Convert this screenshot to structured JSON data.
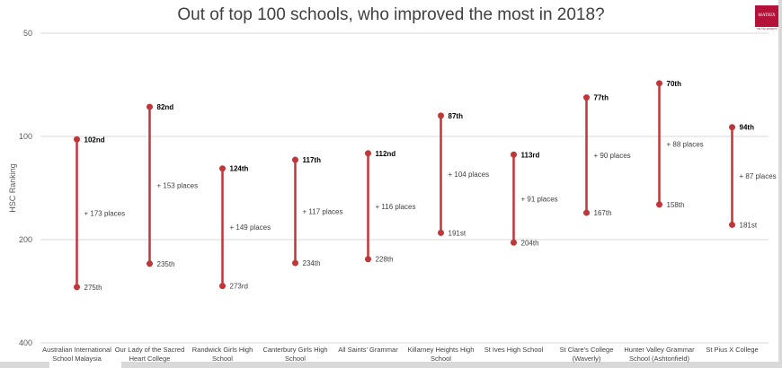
{
  "chart_data": {
    "type": "dumbbell",
    "title": "Out of top 100 schools, who improved the most in 2018?",
    "ylabel": "HSC Ranking",
    "xlabel": "",
    "y_scale": "log",
    "y_reversed": true,
    "ylim": [
      50,
      400
    ],
    "y_ticks": [
      50,
      100,
      200,
      400
    ],
    "grid": true,
    "line_color": "#c0373a",
    "categories": [
      "Australian International School Malaysia",
      "Our Lady of the Sacred Heart College",
      "Randwick Girls High School",
      "Canterbury Girls High School",
      "All Saints' Grammar",
      "Killarney Heights High School",
      "St Ives High School",
      "St Clare's College (Waverly)",
      "Hunter Valley Grammar School (Ashtonfield)",
      "St Pius X College"
    ],
    "rank_2018": [
      102,
      82,
      124,
      117,
      112,
      87,
      113,
      77,
      70,
      94
    ],
    "rank_2018_labels": [
      "102nd",
      "82nd",
      "124th",
      "117th",
      "112nd",
      "87th",
      "113rd",
      "77th",
      "70th",
      "94th"
    ],
    "rank_2017": [
      275,
      235,
      273,
      234,
      228,
      191,
      204,
      167,
      158,
      181
    ],
    "rank_2017_labels": [
      "275th",
      "235th",
      "273rd",
      "234th",
      "228th",
      "191st",
      "204th",
      "167th",
      "158th",
      "181st"
    ],
    "improvement_labels": [
      "+ 173 places",
      "+ 153 places",
      "+ 149 places",
      "+ 117 places",
      "+ 116 places",
      "+ 104 places",
      "+ 91 places",
      "+ 90 places",
      "+ 88 places",
      "+ 87 places"
    ]
  },
  "logo": {
    "text": "MATRIX",
    "tagline": "THE HSC EXPERTS",
    "color": "#b5123a"
  }
}
